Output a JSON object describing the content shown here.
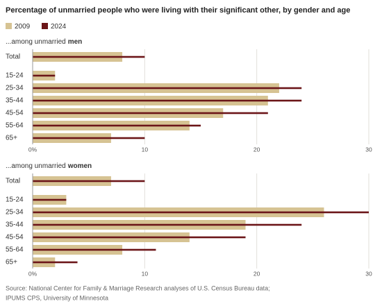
{
  "title": "Percentage of unmarried people who were living with their significant other, by gender and age",
  "source": [
    "Source: National Center for Family & Marriage Research analyses of U.S. Census Bureau data;",
    "IPUMS CPS, University of Minnesota"
  ],
  "chart_data": [
    {
      "type": "bar",
      "subtitle": [
        "...among unmarried",
        "men"
      ],
      "categories": [
        "Total",
        "15-24",
        "25-34",
        "35-44",
        "45-54",
        "55-64",
        "65+"
      ],
      "series": [
        {
          "name": "2009",
          "color": "#d6c393",
          "values": [
            8,
            2,
            22,
            21,
            17,
            14,
            7
          ]
        },
        {
          "name": "2024",
          "color": "#6b1518",
          "values": [
            10,
            2,
            24,
            24,
            21,
            15,
            10
          ]
        }
      ],
      "xlim": [
        0,
        30
      ],
      "xticks": [
        {
          "value": 0,
          "label": "0%"
        },
        10,
        20,
        30
      ],
      "grid": true
    },
    {
      "type": "bar",
      "subtitle": [
        "...among unmarried",
        "women"
      ],
      "categories": [
        "Total",
        "15-24",
        "25-34",
        "35-44",
        "45-54",
        "55-64",
        "65+"
      ],
      "series": [
        {
          "color": "#d6c393",
          "values": [
            7,
            3,
            26,
            19,
            14,
            8,
            2
          ]
        },
        {
          "color": "#6b1518",
          "values": [
            10,
            3,
            30,
            24,
            19,
            11,
            4
          ]
        }
      ],
      "xlim": [
        0,
        30
      ],
      "xticks": [
        {
          "value": 0,
          "label": "0%"
        },
        10,
        20,
        30
      ],
      "grid": true
    }
  ]
}
